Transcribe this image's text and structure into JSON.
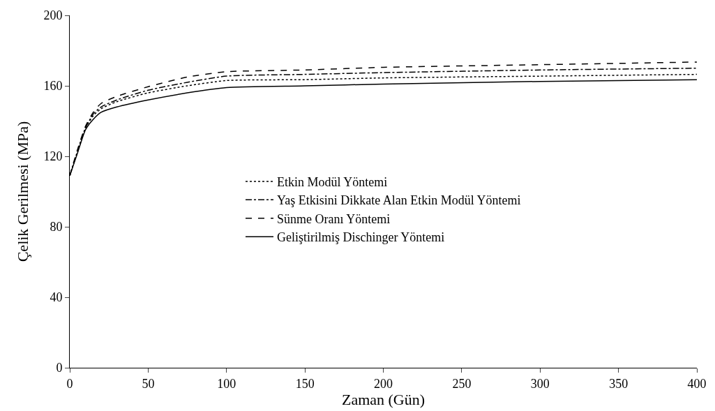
{
  "chart_data": {
    "type": "line",
    "xlabel": "Zaman (Gün)",
    "ylabel": "Çelik Gerilmesi (MPa)",
    "xlim": [
      0,
      400
    ],
    "xticks": [
      0,
      50,
      100,
      150,
      200,
      250,
      300,
      350,
      400
    ],
    "ylim": [
      0,
      200
    ],
    "yticks": [
      0,
      40,
      80,
      120,
      160,
      200
    ],
    "grid": false,
    "legend": "center",
    "marker": "none",
    "x": [
      0,
      5,
      10,
      15,
      20,
      30,
      50,
      75,
      100,
      150,
      200,
      300,
      400
    ],
    "series": [
      {
        "name": "Etkin Modül Yöntemi",
        "color": "#000000",
        "line_style": "dotted",
        "values": [
          109,
          123,
          136,
          143,
          147,
          151,
          156,
          160,
          163,
          163.5,
          164.5,
          165.5,
          166.5
        ]
      },
      {
        "name": "Yaş Etkisini Dikkate Alan Etkin Modül Yöntemi",
        "color": "#000000",
        "line_style": "dashdot",
        "values": [
          109,
          123,
          136,
          144,
          148,
          152,
          157.5,
          162,
          165.5,
          166.5,
          167.5,
          169,
          170
        ]
      },
      {
        "name": "Sünme Oranı Yöntemi",
        "color": "#000000",
        "line_style": "dashed",
        "values": [
          109,
          124,
          137,
          145,
          150,
          154,
          159.5,
          165,
          168,
          169,
          170.5,
          172,
          173.5
        ]
      },
      {
        "name": "Geliştirilmiş Dischinger Yöntemi",
        "color": "#000000",
        "line_style": "solid",
        "values": [
          109,
          122,
          135,
          141,
          145,
          148,
          152,
          156,
          159,
          160,
          161,
          162.5,
          163.5
        ]
      }
    ]
  }
}
